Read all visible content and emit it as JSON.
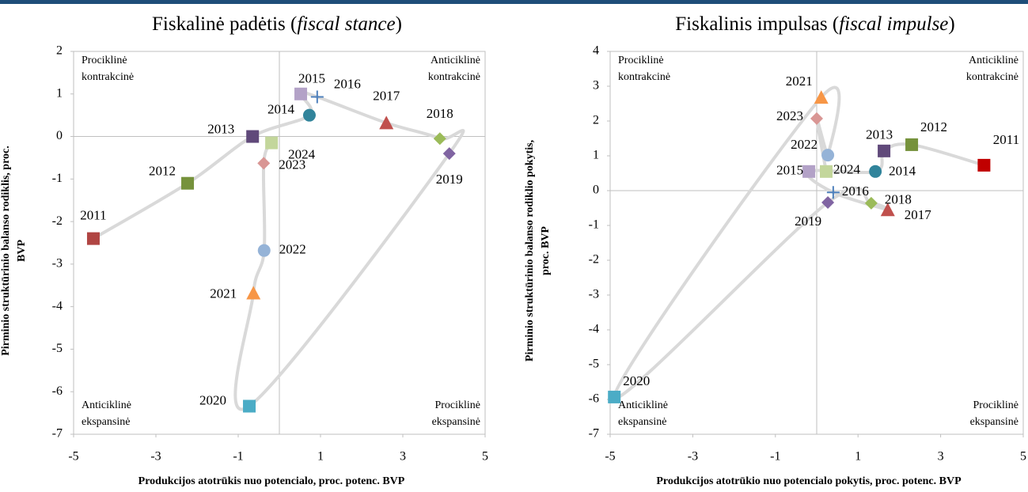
{
  "chart_data": [
    {
      "type": "scatter",
      "title": [
        "Fiskalinė padėtis (",
        "fiscal stance",
        ")"
      ],
      "x_label": [
        "Produkcijos atotrūkis nuo potencialo, proc. potenc. BVP"
      ],
      "y_label": [
        "Pirminio struktūrinio balanso rodiklis, proc.",
        "BVP"
      ],
      "quadrants": {
        "top_left": [
          "Prociklinė",
          "kontrakcinė"
        ],
        "top_right": [
          "Anticiklinė",
          "kontrakcinė"
        ],
        "bottom_left": [
          "Anticiklinė",
          "ekspansinė"
        ],
        "bottom_right": [
          "Prociklinė",
          "ekspansinė"
        ]
      },
      "xlim": [
        -5,
        5
      ],
      "xticks": [
        -5,
        -3,
        -1,
        1,
        3,
        5
      ],
      "ylim": [
        -7,
        2
      ],
      "yticks": [
        -7,
        -6,
        -5,
        -4,
        -3,
        -2,
        -1,
        0,
        1,
        2
      ],
      "line_color": "#d9d9d9",
      "points": [
        {
          "label": "2011",
          "x": -4.52,
          "y": -2.4,
          "color": "#b04543",
          "marker": "square"
        },
        {
          "label": "2012",
          "x": -2.23,
          "y": -1.1,
          "color": "#76923c",
          "marker": "square"
        },
        {
          "label": "2013",
          "x": -0.65,
          "y": 0,
          "color": "#60497a",
          "marker": "square"
        },
        {
          "label": "2014",
          "x": 0.73,
          "y": 0.5,
          "color": "#31849b",
          "marker": "circle"
        },
        {
          "label": "2015",
          "x": 0.52,
          "y": 1.0,
          "color": "#b3a2c7",
          "marker": "square"
        },
        {
          "label": "2016",
          "x": 0.92,
          "y": 0.93,
          "color": "#4f81bd",
          "marker": "plus"
        },
        {
          "label": "2017",
          "x": 2.6,
          "y": 0.32,
          "color": "#c0504d",
          "marker": "triangle"
        },
        {
          "label": "2018",
          "x": 3.9,
          "y": -0.05,
          "color": "#9bbb59",
          "marker": "diamond"
        },
        {
          "label": "2019",
          "x": 4.13,
          "y": -0.4,
          "color": "#8064a2",
          "marker": "diamond"
        },
        {
          "label": "2020",
          "x": -0.73,
          "y": -6.34,
          "color": "#4bacc6",
          "marker": "square"
        },
        {
          "label": "2021",
          "x": -0.63,
          "y": -3.68,
          "color": "#f79646",
          "marker": "triangle"
        },
        {
          "label": "2022",
          "x": -0.37,
          "y": -2.68,
          "color": "#95b3d7",
          "marker": "circle"
        },
        {
          "label": "2023",
          "x": -0.38,
          "y": -0.63,
          "color": "#d99694",
          "marker": "diamond"
        },
        {
          "label": "2024",
          "x": -0.19,
          "y": -0.15,
          "color": "#c3d69b",
          "marker": "square"
        }
      ]
    },
    {
      "type": "scatter",
      "title": [
        "Fiskalinis impulsas (",
        "fiscal impulse",
        ")"
      ],
      "x_label": [
        "Produkcijos atotrūkio nuo potencialo pokytis, proc. potenc. BVP"
      ],
      "y_label": [
        "Pirminio struktūrinio balanso rodiklio pokytis,",
        "proc. BVP"
      ],
      "quadrants": {
        "top_left": [
          "Prociklinė",
          "kontrakcinė"
        ],
        "top_right": [
          "Anticiklinė",
          "kontrakcinė"
        ],
        "bottom_left": [
          "Anticiklinė",
          "ekspansinė"
        ],
        "bottom_right": [
          "Prociklinė",
          "ekspansinė"
        ]
      },
      "xlim": [
        -5,
        5
      ],
      "xticks": [
        -5,
        -3,
        -1,
        1,
        3,
        5
      ],
      "ylim": [
        -7,
        4
      ],
      "yticks": [
        -7,
        -6,
        -5,
        -4,
        -3,
        -2,
        -1,
        0,
        1,
        2,
        3,
        4
      ],
      "line_color": "#d9d9d9",
      "points": [
        {
          "label": "2011",
          "x": 4.05,
          "y": 0.73,
          "color": "#c00000",
          "marker": "square"
        },
        {
          "label": "2012",
          "x": 2.3,
          "y": 1.32,
          "color": "#76923c",
          "marker": "square"
        },
        {
          "label": "2013",
          "x": 1.63,
          "y": 1.14,
          "color": "#60497a",
          "marker": "square"
        },
        {
          "label": "2014",
          "x": 1.42,
          "y": 0.55,
          "color": "#31849b",
          "marker": "circle"
        },
        {
          "label": "2015",
          "x": -0.19,
          "y": 0.55,
          "color": "#b3a2c7",
          "marker": "square"
        },
        {
          "label": "2016",
          "x": 0.4,
          "y": -0.05,
          "color": "#4f81bd",
          "marker": "plus"
        },
        {
          "label": "2017",
          "x": 1.72,
          "y": -0.55,
          "color": "#c0504d",
          "marker": "triangle"
        },
        {
          "label": "2018",
          "x": 1.32,
          "y": -0.36,
          "color": "#9bbb59",
          "marker": "diamond"
        },
        {
          "label": "2019",
          "x": 0.27,
          "y": -0.34,
          "color": "#8064a2",
          "marker": "diamond"
        },
        {
          "label": "2020",
          "x": -4.9,
          "y": -5.93,
          "color": "#4bacc6",
          "marker": "square"
        },
        {
          "label": "2021",
          "x": 0.11,
          "y": 2.68,
          "color": "#f79646",
          "marker": "triangle"
        },
        {
          "label": "2022",
          "x": 0.27,
          "y": 1.02,
          "color": "#95b3d7",
          "marker": "circle"
        },
        {
          "label": "2023",
          "x": 0,
          "y": 2.07,
          "color": "#d99694",
          "marker": "diamond"
        },
        {
          "label": "2024",
          "x": 0.23,
          "y": 0.55,
          "color": "#c3d69b",
          "marker": "square"
        }
      ]
    }
  ]
}
